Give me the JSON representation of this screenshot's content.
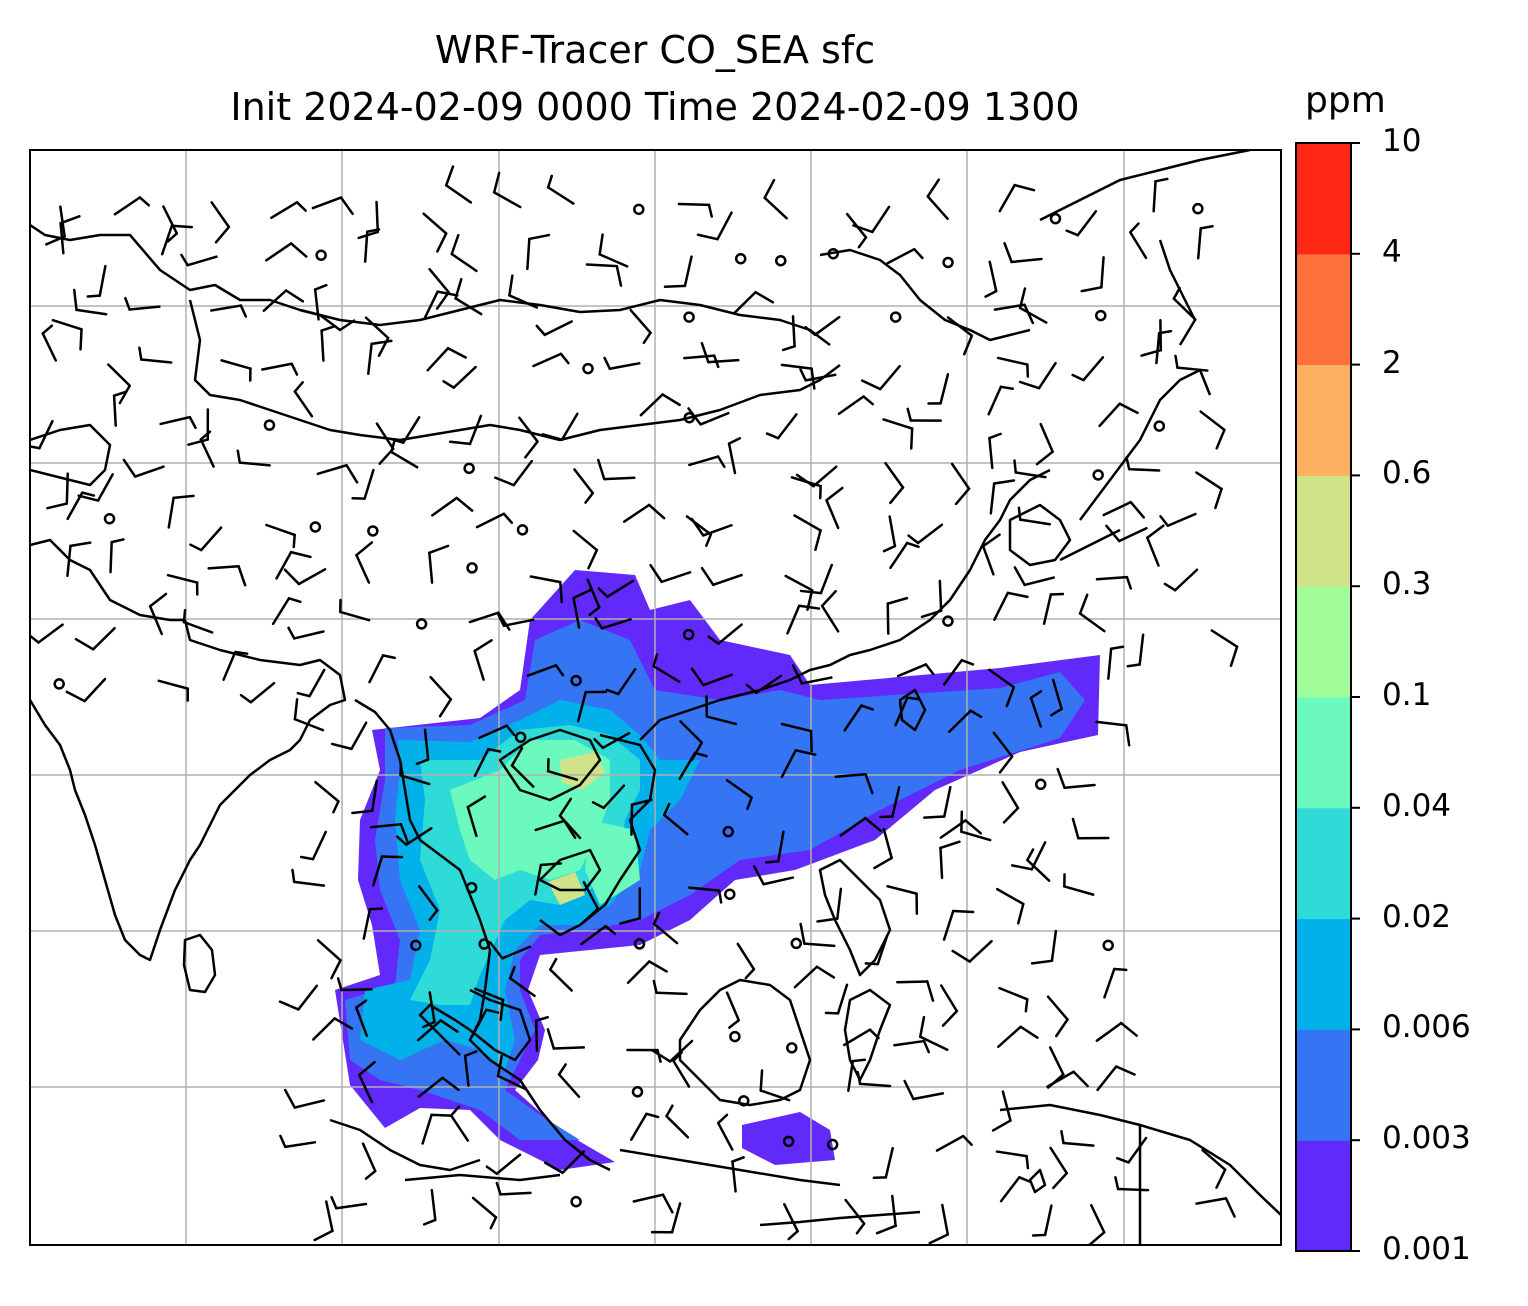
{
  "title": {
    "line1": "WRF-Tracer CO_SEA sfc",
    "line2": "Init 2024-02-09 0000 Time 2024-02-09 1300"
  },
  "colorbar": {
    "unit": "ppm",
    "ticks": [
      "0.001",
      "0.003",
      "0.006",
      "0.02",
      "0.04",
      "0.1",
      "0.3",
      "0.6",
      "2",
      "4",
      "10"
    ],
    "colors": [
      "#6229fb",
      "#3574f3",
      "#03b1ea",
      "#2fdbd7",
      "#6bf9bd",
      "#a1fd9a",
      "#d1e389",
      "#fdb05f",
      "#fd723b",
      "#fe2713"
    ]
  },
  "map": {
    "tracer": "CO_SEA",
    "level": "sfc",
    "plume_color_levels": [
      "#6229fb",
      "#3574f3",
      "#03b1ea",
      "#2fdbd7",
      "#6bf9bd",
      "#d1e389"
    ],
    "coastline_color": "#000000",
    "gridline_color": "#b0b0b0",
    "wind_barbs": true
  }
}
